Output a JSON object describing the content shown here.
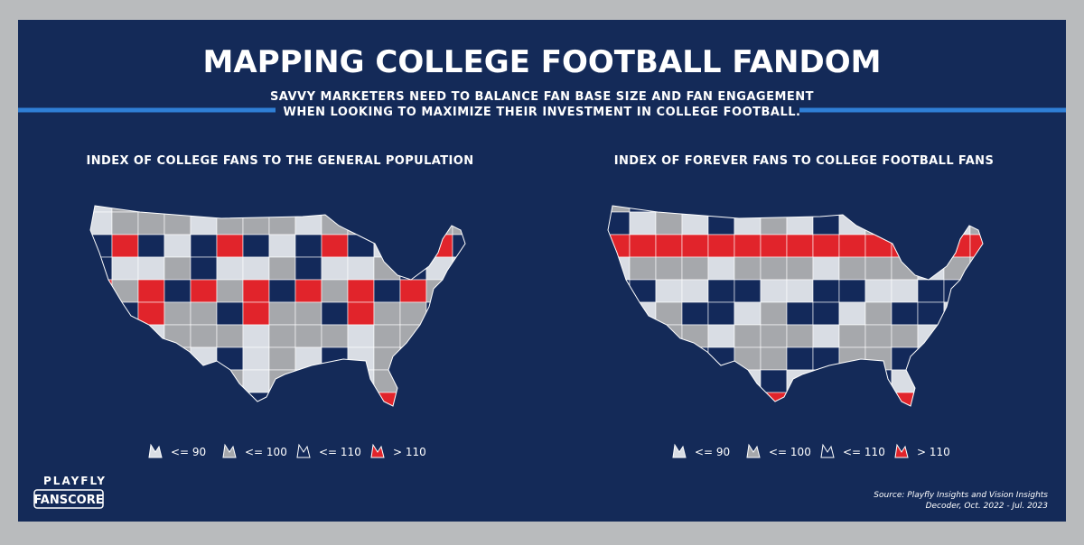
{
  "header": {
    "title": "MAPPING COLLEGE FOOTBALL FANDOM",
    "subtitle": [
      "SAVVY MARKETERS NEED TO BALANCE FAN BASE SIZE AND FAN ENGAGEMENT",
      "WHEN LOOKING TO MAXIMIZE THEIR INVESTMENT IN COLLEGE FOOTBALL."
    ]
  },
  "maps": [
    {
      "title": "INDEX OF COLLEGE FANS TO THE GENERAL POPULATION",
      "legend": [
        {
          "label": "<= 90",
          "color": "#d9dde4"
        },
        {
          "label": "<= 100",
          "color": "#a6a8ac"
        },
        {
          "label": "<= 110",
          "color": "#13295a"
        },
        {
          "label": "> 110",
          "color": "#e1242b"
        }
      ]
    },
    {
      "title": "INDEX OF FOREVER FANS TO COLLEGE FOOTBALL FANS",
      "legend": [
        {
          "label": "<= 90",
          "color": "#d9dde4"
        },
        {
          "label": "<= 100",
          "color": "#a6a8ac"
        },
        {
          "label": "<= 110",
          "color": "#13295a"
        },
        {
          "label": "> 110",
          "color": "#e1242b"
        }
      ]
    }
  ],
  "logo": {
    "brand": "PLAYFLY",
    "product": "FANSCORE"
  },
  "source": [
    "Source: Playfly Insights and Vision Insights",
    "Decoder, Oct. 2022 - Jul. 2023"
  ]
}
